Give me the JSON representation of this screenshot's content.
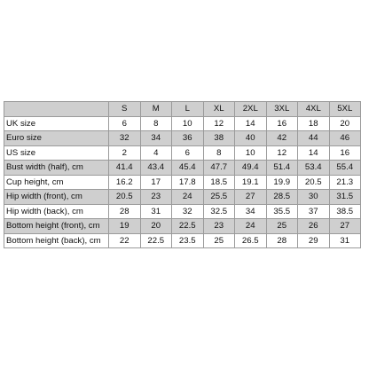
{
  "table": {
    "columns": [
      "",
      "S",
      "M",
      "L",
      "XL",
      "2XL",
      "3XL",
      "4XL",
      "5XL"
    ],
    "rows": [
      {
        "label": "UK size",
        "values": [
          "6",
          "8",
          "10",
          "12",
          "14",
          "16",
          "18",
          "20"
        ]
      },
      {
        "label": "Euro size",
        "values": [
          "32",
          "34",
          "36",
          "38",
          "40",
          "42",
          "44",
          "46"
        ]
      },
      {
        "label": "US size",
        "values": [
          "2",
          "4",
          "6",
          "8",
          "10",
          "12",
          "14",
          "16"
        ]
      },
      {
        "label": "Bust width (half), cm",
        "values": [
          "41.4",
          "43.4",
          "45.4",
          "47.7",
          "49.4",
          "51.4",
          "53.4",
          "55.4"
        ]
      },
      {
        "label": "Cup height, cm",
        "values": [
          "16.2",
          "17",
          "17.8",
          "18.5",
          "19.1",
          "19.9",
          "20.5",
          "21.3"
        ]
      },
      {
        "label": "Hip width (front), cm",
        "values": [
          "20.5",
          "23",
          "24",
          "25.5",
          "27",
          "28.5",
          "30",
          "31.5"
        ]
      },
      {
        "label": "Hip width (back), cm",
        "values": [
          "28",
          "31",
          "32",
          "32.5",
          "34",
          "35.5",
          "37",
          "38.5"
        ]
      },
      {
        "label": "Bottom height (front), cm",
        "values": [
          "19",
          "20",
          "22.5",
          "23",
          "24",
          "25",
          "26",
          "27"
        ]
      },
      {
        "label": "Bottom height (back), cm",
        "values": [
          "22",
          "22.5",
          "23.5",
          "25",
          "26.5",
          "28",
          "29",
          "31"
        ]
      }
    ]
  }
}
